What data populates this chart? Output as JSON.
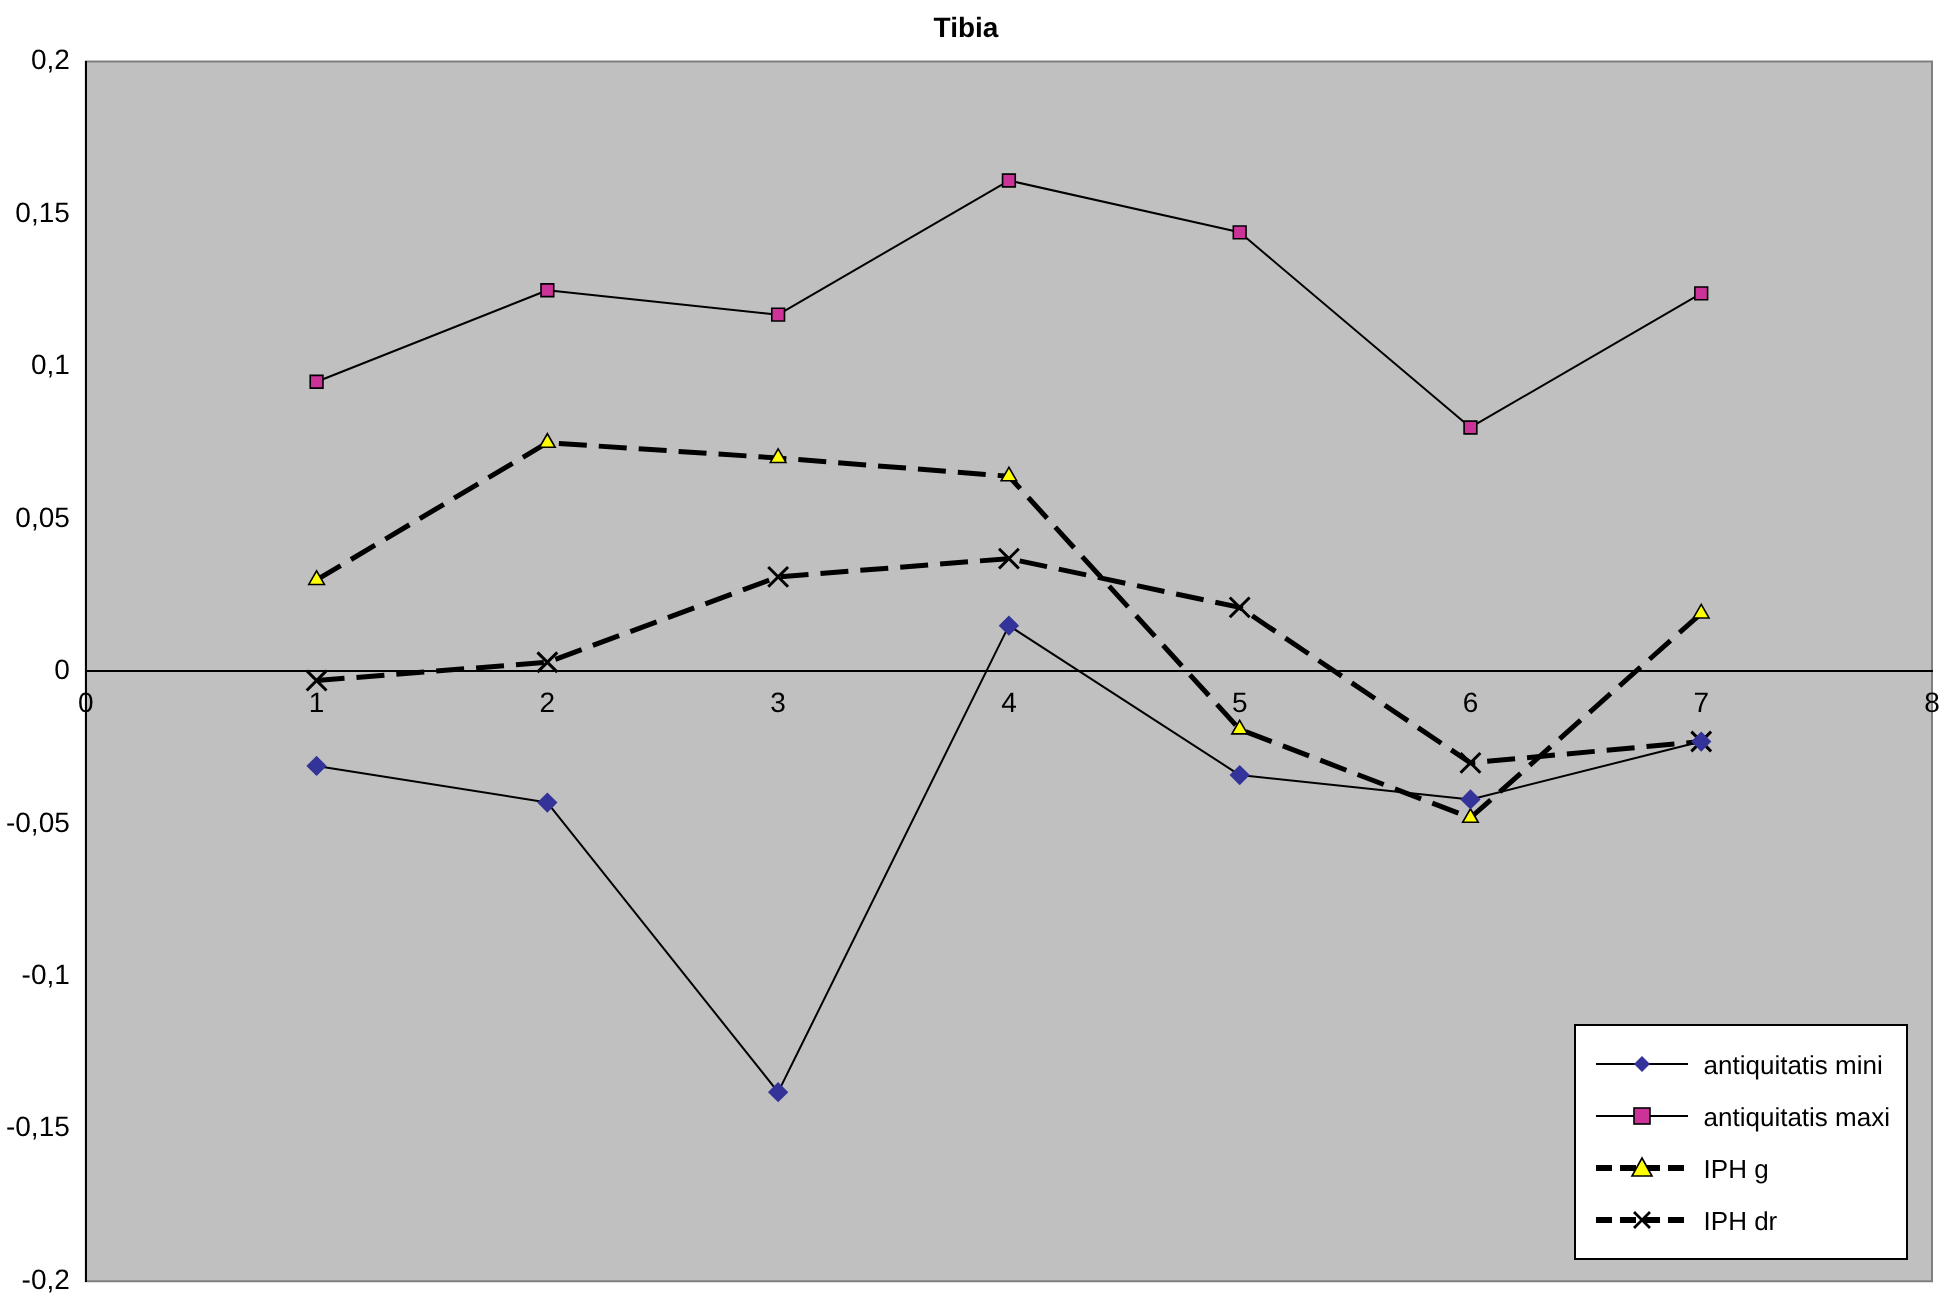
{
  "chart_data": {
    "type": "line",
    "title": "Tibia",
    "x": [
      1,
      2,
      3,
      4,
      5,
      6,
      7
    ],
    "series": [
      {
        "name": "antiquitatis mini",
        "color": "#333399",
        "marker": "diamond",
        "line_style": "solid",
        "values": [
          -0.031,
          -0.043,
          -0.138,
          0.015,
          -0.034,
          -0.042,
          -0.023
        ]
      },
      {
        "name": "antiquitatis maxi",
        "color": "#cc3399",
        "marker": "square",
        "line_style": "solid",
        "values": [
          0.095,
          0.125,
          0.117,
          0.161,
          0.144,
          0.08,
          0.124
        ]
      },
      {
        "name": "IPH g",
        "color": "#ffff00",
        "marker": "triangle",
        "line_style": "dashed",
        "values": [
          0.03,
          0.075,
          0.07,
          0.064,
          -0.019,
          -0.048,
          0.019
        ]
      },
      {
        "name": "IPH dr",
        "color": "#000000",
        "marker": "cross",
        "line_style": "dashed",
        "values": [
          -0.003,
          0.003,
          0.031,
          0.037,
          0.021,
          -0.03,
          -0.023
        ]
      }
    ],
    "xlim": [
      0,
      8
    ],
    "xticks": [
      0,
      1,
      2,
      3,
      4,
      5,
      6,
      7,
      8
    ],
    "ylim": [
      -0.2,
      0.2
    ],
    "yticks": [
      {
        "value": -0.2,
        "label": "-0,2"
      },
      {
        "value": -0.15,
        "label": "-0,15"
      },
      {
        "value": -0.1,
        "label": "-0,1"
      },
      {
        "value": -0.05,
        "label": "-0,05"
      },
      {
        "value": 0,
        "label": "0"
      },
      {
        "value": 0.05,
        "label": "0,05"
      },
      {
        "value": 0.1,
        "label": "0,1"
      },
      {
        "value": 0.15,
        "label": "0,15"
      },
      {
        "value": 0.2,
        "label": "0,2"
      }
    ],
    "grid": false,
    "legend": "bottom right"
  }
}
